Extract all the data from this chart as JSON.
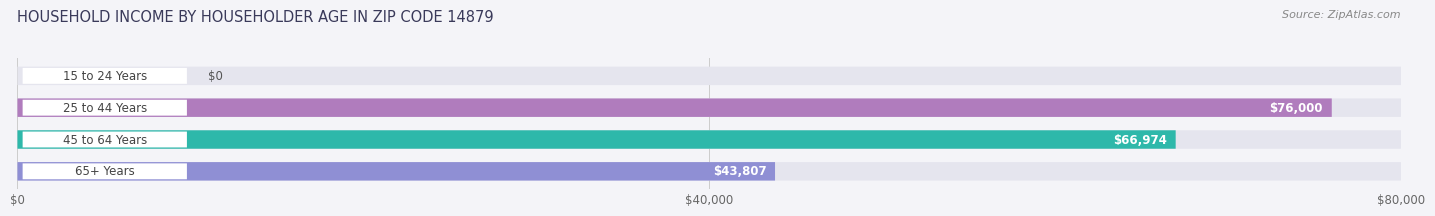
{
  "title": "HOUSEHOLD INCOME BY HOUSEHOLDER AGE IN ZIP CODE 14879",
  "source": "Source: ZipAtlas.com",
  "categories": [
    "15 to 24 Years",
    "25 to 44 Years",
    "45 to 64 Years",
    "65+ Years"
  ],
  "values": [
    0,
    76000,
    66974,
    43807
  ],
  "value_labels": [
    "$0",
    "$76,000",
    "$66,974",
    "$43,807"
  ],
  "bar_colors": [
    "#9dbfe0",
    "#b07cbd",
    "#2eb8aa",
    "#8f8fd4"
  ],
  "bar_bg_color": "#e5e5ee",
  "xlim": [
    0,
    80000
  ],
  "xticks": [
    0,
    40000,
    80000
  ],
  "xtick_labels": [
    "$0",
    "$40,000",
    "$80,000"
  ],
  "title_fontsize": 10.5,
  "source_fontsize": 8,
  "label_fontsize": 8.5,
  "value_label_color_inside": "#ffffff",
  "value_label_color_outside": "#555555",
  "background_color": "#f4f4f8",
  "label_pill_color": "#ffffff",
  "grid_color": "#cccccc"
}
